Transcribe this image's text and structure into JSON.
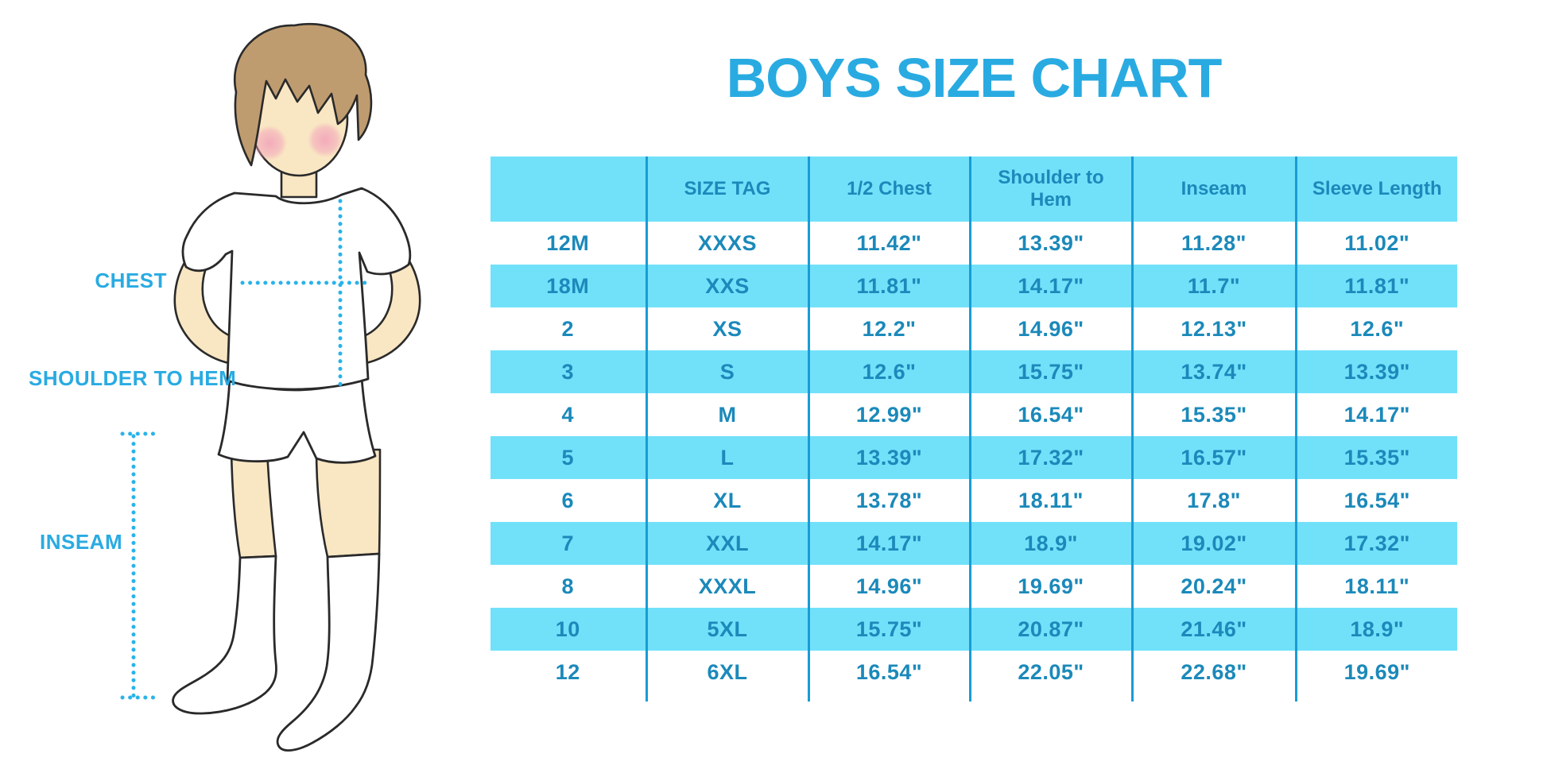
{
  "title": "BOYS SIZE CHART",
  "illustration": {
    "labels": {
      "chest": "CHEST",
      "shoulder_to_hem": "SHOULDER TO HEM",
      "inseam": "INSEAM"
    }
  },
  "chart_data": {
    "type": "table",
    "title": "BOYS SIZE CHART",
    "columns": [
      "",
      "SIZE TAG",
      "1/2 Chest",
      "Shoulder to Hem",
      "Inseam",
      "Sleeve Length"
    ],
    "rows": [
      [
        "12M",
        "XXXS",
        "11.42\"",
        "13.39\"",
        "11.28\"",
        "11.02\""
      ],
      [
        "18M",
        "XXS",
        "11.81\"",
        "14.17\"",
        "11.7\"",
        "11.81\""
      ],
      [
        "2",
        "XS",
        "12.2\"",
        "14.96\"",
        "12.13\"",
        "12.6\""
      ],
      [
        "3",
        "S",
        "12.6\"",
        "15.75\"",
        "13.74\"",
        "13.39\""
      ],
      [
        "4",
        "M",
        "12.99\"",
        "16.54\"",
        "15.35\"",
        "14.17\""
      ],
      [
        "5",
        "L",
        "13.39\"",
        "17.32\"",
        "16.57\"",
        "15.35\""
      ],
      [
        "6",
        "XL",
        "13.78\"",
        "18.11\"",
        "17.8\"",
        "16.54\""
      ],
      [
        "7",
        "XXL",
        "14.17\"",
        "18.9\"",
        "19.02\"",
        "17.32\""
      ],
      [
        "8",
        "XXXL",
        "14.96\"",
        "19.69\"",
        "20.24\"",
        "18.11\""
      ],
      [
        "10",
        "5XL",
        "15.75\"",
        "20.87\"",
        "21.46\"",
        "18.9\""
      ],
      [
        "12",
        "6XL",
        "16.54\"",
        "22.05\"",
        "22.68\"",
        "19.69\""
      ]
    ],
    "row_striping": "white / light-blue alternating, header light-blue",
    "legend_position": "none",
    "grid": "internal vertical dividers only"
  },
  "colors": {
    "accent": "#29abe2",
    "band": "#71e1fa",
    "table_text": "#1b89ba",
    "divider": "#199cd6",
    "dotted": "#29b3e9",
    "skin": "#f9e6c3",
    "hair": "#bf9c70",
    "outline": "#2a2a2a"
  }
}
